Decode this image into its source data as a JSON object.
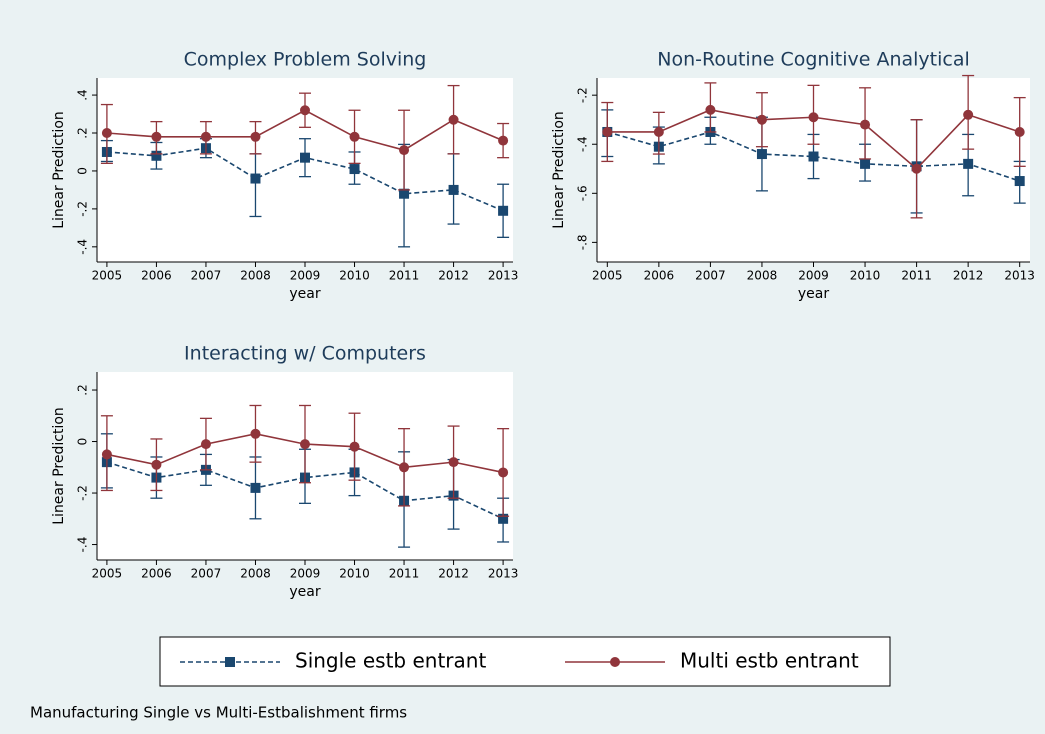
{
  "chart_data": [
    {
      "type": "line",
      "title": "Complex Problem Solving",
      "x_label": "year",
      "y_label": "Linear Prediction",
      "x": [
        2005,
        2006,
        2007,
        2008,
        2009,
        2010,
        2011,
        2012,
        2013
      ],
      "xlim": [
        2004.8,
        2013.2
      ],
      "xticks": [
        2005,
        2006,
        2007,
        2008,
        2009,
        2010,
        2011,
        2012,
        2013
      ],
      "ylim": [
        -0.48,
        0.49
      ],
      "yticks": [
        {
          "value": -0.4,
          "label": "-.4"
        },
        {
          "value": -0.2,
          "label": "-.2"
        },
        0,
        {
          "value": 0.2,
          "label": ".2"
        },
        {
          "value": 0.4,
          "label": ".4"
        }
      ],
      "series": [
        {
          "name": "Single estb entrant",
          "color": "#1a476f",
          "dash": true,
          "marker": "square",
          "values": [
            0.1,
            0.08,
            0.12,
            -0.04,
            0.07,
            0.01,
            -0.12,
            -0.1,
            -0.21
          ],
          "ci_low": [
            0.05,
            0.01,
            0.07,
            -0.24,
            -0.03,
            -0.07,
            -0.4,
            -0.28,
            -0.35
          ],
          "ci_high": [
            0.16,
            0.15,
            0.17,
            0.09,
            0.17,
            0.1,
            0.14,
            0.09,
            -0.07
          ]
        },
        {
          "name": "Multi estb entrant",
          "color": "#90353b",
          "dash": false,
          "marker": "circle",
          "values": [
            0.2,
            0.18,
            0.18,
            0.18,
            0.32,
            0.18,
            0.11,
            0.27,
            0.16
          ],
          "ci_low": [
            0.04,
            0.09,
            0.09,
            0.09,
            0.23,
            0.04,
            -0.1,
            0.09,
            0.07
          ],
          "ci_high": [
            0.35,
            0.26,
            0.26,
            0.26,
            0.41,
            0.32,
            0.32,
            0.45,
            0.25
          ]
        }
      ]
    },
    {
      "type": "line",
      "title": "Non-Routine Cognitive Analytical",
      "x_label": "year",
      "y_label": "Linear Prediction",
      "x": [
        2005,
        2006,
        2007,
        2008,
        2009,
        2010,
        2011,
        2012,
        2013
      ],
      "xlim": [
        2004.8,
        2013.2
      ],
      "xticks": [
        2005,
        2006,
        2007,
        2008,
        2009,
        2010,
        2011,
        2012,
        2013
      ],
      "ylim": [
        -0.88,
        -0.13
      ],
      "yticks": [
        {
          "value": -0.8,
          "label": "-.8"
        },
        {
          "value": -0.6,
          "label": "-.6"
        },
        {
          "value": -0.4,
          "label": "-.4"
        },
        {
          "value": -0.2,
          "label": "-.2"
        }
      ],
      "series": [
        {
          "color": "#1a476f",
          "dash": true,
          "marker": "square",
          "values": [
            -0.35,
            -0.41,
            -0.35,
            -0.44,
            -0.45,
            -0.48,
            -0.49,
            -0.48,
            -0.55
          ],
          "ci_low": [
            -0.45,
            -0.48,
            -0.4,
            -0.59,
            -0.54,
            -0.55,
            -0.68,
            -0.61,
            -0.64
          ],
          "ci_high": [
            -0.26,
            -0.33,
            -0.29,
            -0.29,
            -0.36,
            -0.4,
            -0.3,
            -0.36,
            -0.47
          ]
        },
        {
          "color": "#90353b",
          "dash": false,
          "marker": "circle",
          "values": [
            -0.35,
            -0.35,
            -0.26,
            -0.3,
            -0.29,
            -0.32,
            -0.5,
            -0.28,
            -0.35
          ],
          "ci_low": [
            -0.47,
            -0.44,
            -0.35,
            -0.41,
            -0.4,
            -0.46,
            -0.7,
            -0.42,
            -0.49
          ],
          "ci_high": [
            -0.23,
            -0.27,
            -0.15,
            -0.19,
            -0.16,
            -0.17,
            -0.3,
            -0.12,
            -0.21
          ]
        }
      ]
    },
    {
      "type": "line",
      "title": "Interacting w/ Computers",
      "x_label": "year",
      "y_label": "Linear Prediction",
      "x": [
        2005,
        2006,
        2007,
        2008,
        2009,
        2010,
        2011,
        2012,
        2013
      ],
      "xlim": [
        2004.8,
        2013.2
      ],
      "xticks": [
        2005,
        2006,
        2007,
        2008,
        2009,
        2010,
        2011,
        2012,
        2013
      ],
      "ylim": [
        -0.46,
        0.27
      ],
      "yticks": [
        {
          "value": -0.4,
          "label": "-.4"
        },
        {
          "value": -0.2,
          "label": "-.2"
        },
        0,
        {
          "value": 0.2,
          "label": ".2"
        }
      ],
      "series": [
        {
          "color": "#1a476f",
          "dash": true,
          "marker": "square",
          "values": [
            -0.08,
            -0.14,
            -0.11,
            -0.18,
            -0.14,
            -0.12,
            -0.23,
            -0.21,
            -0.3
          ],
          "ci_low": [
            -0.18,
            -0.22,
            -0.17,
            -0.3,
            -0.24,
            -0.21,
            -0.41,
            -0.34,
            -0.39
          ],
          "ci_high": [
            0.03,
            -0.06,
            -0.05,
            -0.06,
            -0.03,
            -0.03,
            -0.04,
            -0.07,
            -0.22
          ]
        },
        {
          "color": "#90353b",
          "dash": false,
          "marker": "circle",
          "values": [
            -0.05,
            -0.09,
            -0.01,
            0.03,
            -0.01,
            -0.02,
            -0.1,
            -0.08,
            -0.12
          ],
          "ci_low": [
            -0.19,
            -0.19,
            -0.11,
            -0.08,
            -0.16,
            -0.15,
            -0.25,
            -0.22,
            -0.29
          ],
          "ci_high": [
            0.1,
            0.01,
            0.09,
            0.14,
            0.14,
            0.11,
            0.05,
            0.06,
            0.05
          ]
        }
      ]
    }
  ],
  "note": "Manufacturing Single vs Multi-Estbalishment firms"
}
